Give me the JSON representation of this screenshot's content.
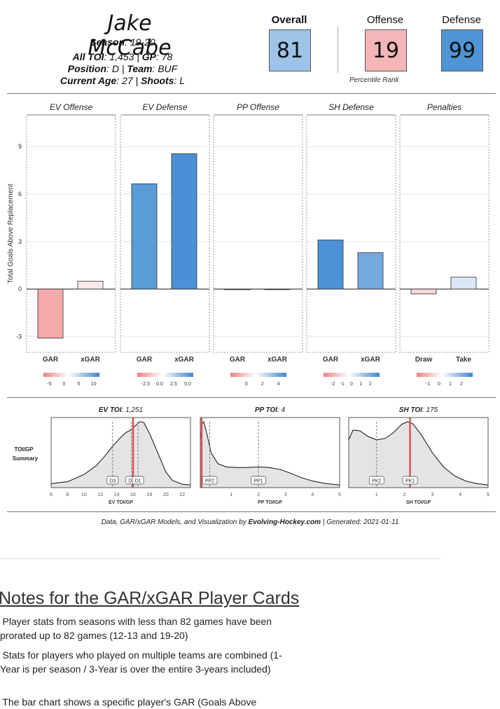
{
  "player": {
    "name": "Jake McCabe",
    "season_label": "Season",
    "season": "19-20",
    "all_toi_label": "All TOI",
    "all_toi": "1,453",
    "gp_label": "GP",
    "gp": "78",
    "position_label": "Position",
    "position": "D",
    "team_label": "Team",
    "team": "BUF",
    "age_label": "Current Age",
    "age": "27",
    "shoots_label": "Shoots",
    "shoots": "L"
  },
  "ranks": {
    "overall_label": "Overall",
    "overall": "81",
    "offense_label": "Offense",
    "offense": "19",
    "defense_label": "Defense",
    "defense": "99",
    "note": "Percentile Rank",
    "colors": {
      "overall": "#9dc3e6",
      "offense": "#f4b6b6",
      "defense": "#4f94d4"
    }
  },
  "chart_data": [
    {
      "type": "bar",
      "ylabel": "Total Goals Above Replacement",
      "ylim": [
        -4,
        11
      ],
      "yticks": [
        -3,
        0,
        3,
        6,
        9
      ],
      "grid": true,
      "facets": [
        {
          "title": "EV Offense",
          "categories": [
            "GAR",
            "xGAR"
          ],
          "values": [
            -3.1,
            0.5
          ],
          "colors": [
            "#f5aaaa",
            "#fbe8e8"
          ],
          "legend": {
            "ticks": [
              "-5",
              "0",
              "5",
              "10"
            ],
            "range": [
              -7,
              12
            ]
          }
        },
        {
          "title": "EV Defense",
          "categories": [
            "GAR",
            "xGAR"
          ],
          "values": [
            6.65,
            8.55
          ],
          "colors": [
            "#5a9bd8",
            "#4a90d6"
          ],
          "legend": {
            "ticks": [
              "-2.5",
              "0.0",
              "2.5",
              "5.0"
            ],
            "range": [
              -4,
              6
            ]
          }
        },
        {
          "title": "PP Offense",
          "categories": [
            "GAR",
            "xGAR"
          ],
          "values": [
            -0.05,
            0.0
          ],
          "colors": [
            "#f9dede",
            "#ffffff"
          ],
          "legend": {
            "ticks": [
              "0",
              "2",
              "4"
            ],
            "range": [
              -2,
              5
            ]
          }
        },
        {
          "title": "SH Defense",
          "categories": [
            "GAR",
            "xGAR"
          ],
          "values": [
            3.1,
            2.3
          ],
          "colors": [
            "#4b93d6",
            "#74a9e0"
          ],
          "legend": {
            "ticks": [
              "-2",
              "-1",
              "0",
              "1",
              "2"
            ],
            "range": [
              -3,
              3
            ]
          }
        },
        {
          "title": "Penalties",
          "categories": [
            "Draw",
            "Take"
          ],
          "values": [
            -0.3,
            0.75
          ],
          "colors": [
            "#fbd6d6",
            "#dbe7f6"
          ],
          "legend": {
            "ticks": [
              "-1",
              "0",
              "1",
              "2"
            ],
            "range": [
              -2,
              3
            ]
          }
        }
      ]
    },
    {
      "type": "area",
      "row_label_line1": "TOI/GP",
      "row_label_line2": "Summary",
      "panels": [
        {
          "title_label": "EV TOI",
          "title_value": "1,251",
          "xlabel": "EV TOI/GP",
          "xlim": [
            6,
            23
          ],
          "xticks": [
            6,
            8,
            10,
            12,
            14,
            16,
            18,
            20,
            22
          ],
          "x": [
            6.0,
            8,
            10,
            11.5,
            12.5,
            13.5,
            14.5,
            15.2,
            15.7,
            16.2,
            16.8,
            17.3,
            18,
            19,
            20,
            20.8,
            22,
            23
          ],
          "y": [
            0.04,
            0.07,
            0.18,
            0.32,
            0.46,
            0.62,
            0.76,
            0.84,
            0.87,
            0.93,
            1.0,
            0.99,
            0.82,
            0.52,
            0.22,
            0.09,
            0.03,
            0.02
          ],
          "player_value": 16.0,
          "markers": [
            {
              "label": "D3",
              "x": 13.5
            },
            {
              "label": "D2",
              "x": 15.8
            },
            {
              "label": "D1",
              "x": 16.6
            }
          ]
        },
        {
          "title_label": "PP TOI",
          "title_value": "4",
          "xlabel": "PP TOI/GP",
          "xlim": [
            -0.15,
            5
          ],
          "xticks": [
            1,
            2,
            3,
            4,
            5
          ],
          "x": [
            -0.15,
            -0.08,
            -0.02,
            0.1,
            0.25,
            0.5,
            0.8,
            1.2,
            1.6,
            2.0,
            2.4,
            2.8,
            3.2,
            3.6,
            4.0,
            4.5,
            5.0
          ],
          "y": [
            0.72,
            0.97,
            1.0,
            0.8,
            0.52,
            0.35,
            0.3,
            0.29,
            0.29,
            0.3,
            0.29,
            0.26,
            0.2,
            0.13,
            0.08,
            0.04,
            0.02
          ],
          "player_value": -0.1,
          "markers": [
            {
              "label": "PP2",
              "x": 0.2
            },
            {
              "label": "PP1",
              "x": 2.0
            }
          ]
        },
        {
          "title_label": "SH TOI",
          "title_value": "175",
          "xlabel": "SH TOI/GP",
          "xlim": [
            0,
            5
          ],
          "xticks": [
            1,
            2,
            3,
            4,
            5
          ],
          "x": [
            0.0,
            0.15,
            0.4,
            0.7,
            1.0,
            1.3,
            1.6,
            1.9,
            2.1,
            2.3,
            2.6,
            3.0,
            3.4,
            3.8,
            4.2,
            4.6,
            5.0
          ],
          "y": [
            0.72,
            0.87,
            0.86,
            0.77,
            0.72,
            0.74,
            0.83,
            0.96,
            1.0,
            0.97,
            0.8,
            0.52,
            0.3,
            0.16,
            0.08,
            0.04,
            0.02
          ],
          "player_value": 2.2,
          "markers": [
            {
              "label": "PK2",
              "x": 1.0
            },
            {
              "label": "PK1",
              "x": 2.2
            }
          ]
        }
      ]
    }
  ],
  "footer": {
    "prefix": "Data, GAR/xGAR Models, and Visualization by",
    "brand": "Evolving-Hockey.com",
    "suffix": "| Generated: 2021-01-11"
  },
  "notes": {
    "title": "Notes for the GAR/xGAR Player Cards",
    "items": [
      "- Player stats from seasons with less than 82 games have been prorated up to 82 games (12-13 and 19-20)",
      "- Stats for players who played on multiple teams are combined (1-Year is per season / 3-Year is over the entire 3-years included)",
      "- The bar chart shows a specific player's GAR (Goals Above"
    ]
  }
}
